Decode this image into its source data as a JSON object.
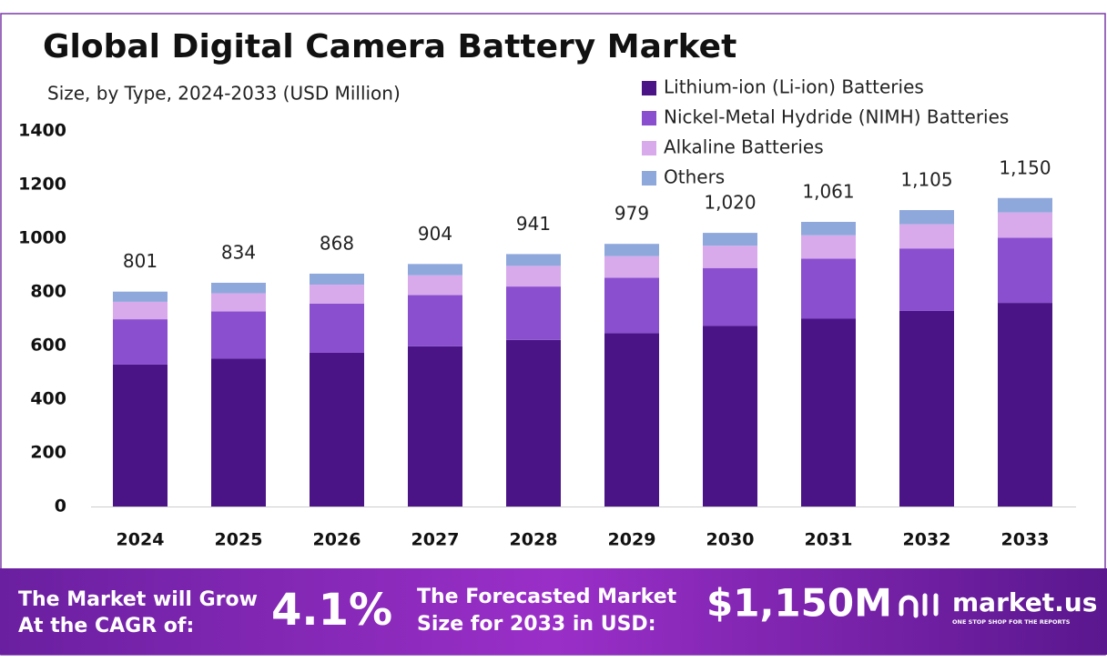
{
  "chart_data": {
    "type": "stacked-bar",
    "title": "Global Digital Camera Battery Market",
    "subtitle": "Size, by Type, 2024-2033 (USD Million)",
    "categories": [
      "2024",
      "2025",
      "2026",
      "2027",
      "2028",
      "2029",
      "2030",
      "2031",
      "2032",
      "2033"
    ],
    "series": [
      {
        "name": "Lithium-ion (Li-ion) Batteries",
        "color": "#4a1486",
        "values": [
          529,
          551,
          573,
          597,
          621,
          646,
          673,
          700,
          729,
          759
        ]
      },
      {
        "name": "Nickel-Metal Hydride (NIMH) Batteries",
        "color": "#8a4fcf",
        "values": [
          169,
          176,
          183,
          191,
          199,
          207,
          216,
          224,
          233,
          243
        ]
      },
      {
        "name": "Alkaline Batteries",
        "color": "#d8aaec",
        "values": [
          65,
          68,
          71,
          74,
          77,
          80,
          83,
          87,
          90,
          94
        ]
      },
      {
        "name": "Others",
        "color": "#8fa8dc",
        "values": [
          38,
          39,
          41,
          42,
          44,
          46,
          48,
          50,
          53,
          54
        ]
      }
    ],
    "totals": {
      "values": [
        801,
        834,
        868,
        904,
        941,
        979,
        1020,
        1061,
        1105,
        1150
      ],
      "value_labels": [
        "801",
        "834",
        "868",
        "904",
        "941",
        "979",
        "1,020",
        "1,061",
        "1,105",
        "1,150"
      ]
    },
    "ylim": [
      0,
      1400
    ],
    "yticks": [
      0,
      200,
      400,
      600,
      800,
      1000,
      1200,
      1400
    ],
    "grid": false,
    "legend": "top-right"
  },
  "footer": {
    "cagr_label": [
      "The Market will Grow",
      "At the CAGR of:"
    ],
    "cagr": "4.1%",
    "forecast_label": [
      "The Forecasted Market",
      "Size for 2033 in USD:"
    ],
    "forecast": "$1,150M",
    "brand": "market.us",
    "tagline": "ONE STOP SHOP FOR THE REPORTS"
  }
}
